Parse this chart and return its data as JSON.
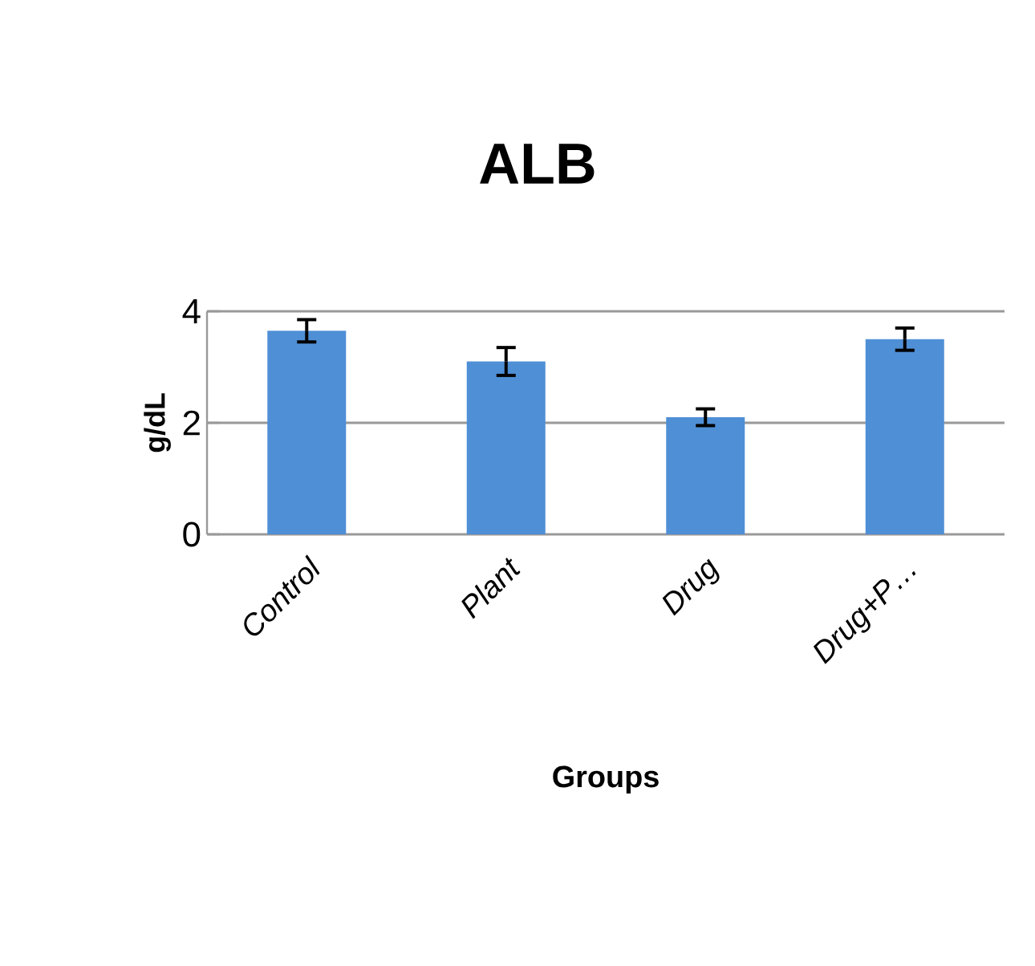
{
  "chart_data": {
    "type": "bar",
    "title": "ALB",
    "xlabel": "Groups",
    "ylabel": "g/dL",
    "categories": [
      "Control",
      "Plant",
      "Drug",
      "Drug+P…"
    ],
    "values": [
      3.65,
      3.1,
      2.1,
      3.5
    ],
    "errors": [
      0.2,
      0.25,
      0.15,
      0.2
    ],
    "color": "#4f8fd6",
    "ylim": [
      0,
      4
    ],
    "yticks": [
      0,
      2,
      4
    ],
    "grid": "y"
  }
}
